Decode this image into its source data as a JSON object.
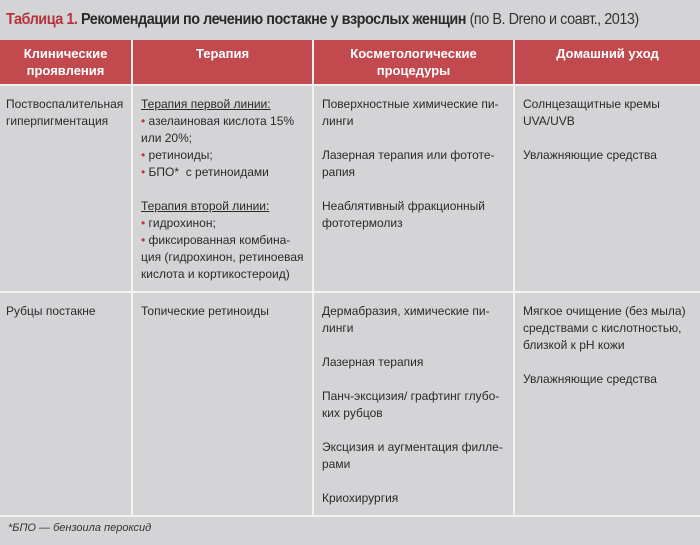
{
  "title": {
    "label": "Таблица 1.",
    "text": " Рекомендации по лечению постакне у взрослых женщин",
    "source": " (по B. Dreno и соавт., 2013)"
  },
  "colors": {
    "header": "#c24a4e",
    "accent": "#b5343a",
    "background": "#d4d4d7"
  },
  "headers": [
    "Клинические\nпроявления",
    "Терапия",
    "Косметологические\nпроцедуры",
    "Домашний уход"
  ],
  "rows": [
    {
      "clinical": "Поствоспалительная\nгиперпигментация",
      "therapy": {
        "first_title": "Терапия первой линии:",
        "first_items": [
          "азелаиновая кислота 15%\nили 20%;",
          "ретиноиды;",
          "БПО*  с ретиноидами"
        ],
        "second_title": "Терапия второй линии:",
        "second_items": [
          "гидрохинон;",
          "фиксированная комбина-\nция (гидрохинон, ретиноевая\nкислота и кортикостероид)"
        ]
      },
      "procedures": [
        "Поверхностные химические пи-\nлинги",
        "Лазерная терапия или фототе-\nрапия",
        "Неаблятивный фракционный\nфототермолиз"
      ],
      "home": [
        "Солнцезащитные кремы\nUVA/UVB",
        "Увлажняющие средства"
      ]
    },
    {
      "clinical": "Рубцы постакне",
      "therapy": "Топические ретиноиды",
      "procedures": [
        "Дермабразия, химические пи-\nлинги",
        "Лазерная терапия",
        "Панч-эксцизия/ графтинг глубо-\nких рубцов",
        "Эксцизия и аугментация филле-\nрами",
        "Криохирургия"
      ],
      "home": [
        "Мягкое очищение (без мыла)\nсредствами с кислотностью,\nблизкой к pH кожи",
        "Увлажняющие средства"
      ]
    }
  ],
  "footnote": "*БПО — бензоила пероксид"
}
